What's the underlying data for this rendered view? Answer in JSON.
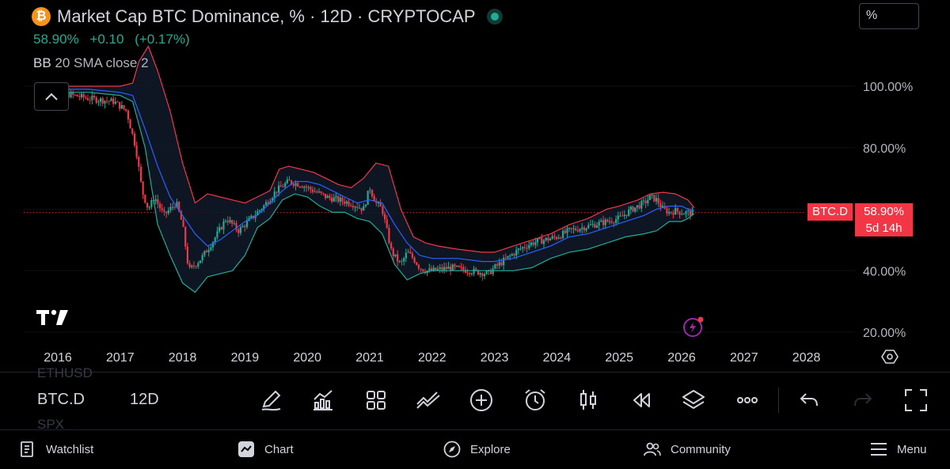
{
  "header": {
    "logo_glyph": "₿",
    "title": "Market Cap BTC Dominance, % · 12D · CRYPTOCAP",
    "price": "58.90%",
    "change": "+0.10",
    "change_pct": "(+0.17%)",
    "indicator_name": "BB",
    "indicator_params": "20 SMA close 2",
    "unit_mode": "%"
  },
  "colors": {
    "up": "#22ab94",
    "down": "#f23645",
    "upper_band": "#f23645",
    "lower_band": "#22ab94",
    "basis": "#2962ff",
    "badge": "#f23645",
    "background": "#000000"
  },
  "chart_data": {
    "type": "candlestick",
    "title": "Market Cap BTC Dominance, % · 12D · CRYPTOCAP",
    "y_axis": {
      "unit": "%",
      "ticks": [
        "100.00%",
        "80.00%",
        "40.00%",
        "20.00%"
      ],
      "tick_values": [
        100,
        80,
        40,
        20
      ],
      "range": [
        15,
        120
      ]
    },
    "x_axis": {
      "ticks": [
        "2016",
        "2017",
        "2018",
        "2019",
        "2020",
        "2021",
        "2022",
        "2023",
        "2024",
        "2025",
        "2026",
        "2027",
        "2028"
      ],
      "range": [
        2015.6,
        2028.8
      ]
    },
    "series": [
      {
        "name": "BTC.D",
        "kind": "close",
        "x": [
          2015.7,
          2016.0,
          2016.5,
          2016.9,
          2017.1,
          2017.25,
          2017.35,
          2017.45,
          2017.55,
          2017.7,
          2017.9,
          2018.0,
          2018.1,
          2018.3,
          2018.5,
          2018.7,
          2018.9,
          2019.1,
          2019.3,
          2019.5,
          2019.7,
          2019.9,
          2020.1,
          2020.3,
          2020.5,
          2020.7,
          2020.9,
          2021.0,
          2021.1,
          2021.2,
          2021.35,
          2021.5,
          2021.6,
          2021.7,
          2021.8,
          2021.9,
          2022.0,
          2022.3,
          2022.6,
          2022.9,
          2023.0,
          2023.2,
          2023.4,
          2023.6,
          2023.8,
          2024.0,
          2024.2,
          2024.4,
          2024.6,
          2024.8,
          2025.0,
          2025.2,
          2025.4,
          2025.5,
          2025.6,
          2025.7,
          2025.8,
          2025.9,
          2026.0,
          2026.1,
          2026.2
        ],
        "y": [
          99,
          98,
          96,
          95,
          92,
          80,
          66,
          60,
          64,
          58,
          62,
          55,
          40,
          44,
          50,
          57,
          53,
          57,
          61,
          66,
          69,
          68,
          66,
          64,
          63,
          62,
          60,
          67,
          62,
          60,
          46,
          42,
          46,
          44,
          41,
          40,
          40,
          41,
          40,
          39,
          41,
          44,
          47,
          49,
          50,
          51,
          53,
          54,
          55,
          56,
          57,
          60,
          62,
          64,
          63,
          60,
          59,
          59.5,
          59,
          58.8,
          58.9
        ]
      },
      {
        "name": "Upper band",
        "kind": "bb_upper",
        "x": [
          2015.7,
          2016.5,
          2017.0,
          2017.2,
          2017.3,
          2017.45,
          2017.6,
          2017.8,
          2018.0,
          2018.2,
          2018.4,
          2018.6,
          2018.8,
          2019.0,
          2019.2,
          2019.4,
          2019.55,
          2019.7,
          2019.9,
          2020.1,
          2020.3,
          2020.5,
          2020.7,
          2020.9,
          2021.1,
          2021.3,
          2021.5,
          2021.7,
          2021.9,
          2022.1,
          2022.4,
          2022.8,
          2023.0,
          2023.3,
          2023.6,
          2023.9,
          2024.2,
          2024.5,
          2024.8,
          2025.0,
          2025.3,
          2025.5,
          2025.7,
          2025.9,
          2026.1,
          2026.2
        ],
        "y": [
          100,
          100,
          100,
          101,
          108,
          113,
          105,
          92,
          75,
          62,
          65,
          64,
          63,
          62,
          64,
          66,
          73,
          74,
          73,
          72,
          70,
          68,
          67,
          70,
          75,
          74,
          60,
          51,
          49,
          48,
          47,
          46,
          46,
          48,
          50,
          52,
          55,
          57,
          60,
          61,
          63,
          65,
          65.5,
          65,
          63,
          60.5
        ]
      },
      {
        "name": "Lower band",
        "kind": "bb_lower",
        "x": [
          2015.7,
          2016.5,
          2017.0,
          2017.2,
          2017.4,
          2017.6,
          2017.8,
          2018.0,
          2018.2,
          2018.4,
          2018.6,
          2018.8,
          2019.0,
          2019.2,
          2019.4,
          2019.6,
          2019.8,
          2020.0,
          2020.2,
          2020.4,
          2020.6,
          2020.8,
          2021.0,
          2021.2,
          2021.4,
          2021.6,
          2021.8,
          2022.0,
          2022.4,
          2022.8,
          2023.0,
          2023.3,
          2023.6,
          2023.9,
          2024.2,
          2024.5,
          2024.8,
          2025.1,
          2025.4,
          2025.6,
          2025.8,
          2026.0,
          2026.1,
          2026.2
        ],
        "y": [
          98,
          98,
          97,
          95,
          80,
          55,
          45,
          36,
          33,
          38,
          39,
          40,
          45,
          54,
          57,
          63,
          65,
          64,
          61,
          59,
          59,
          57,
          56,
          52,
          42,
          37,
          39,
          40,
          40,
          40,
          40,
          40,
          41,
          44,
          46,
          47,
          49,
          51,
          52,
          53,
          56,
          56,
          57,
          58.5
        ]
      },
      {
        "name": "Basis",
        "kind": "bb_basis",
        "x": [
          2015.7,
          2016.5,
          2017.0,
          2017.2,
          2017.4,
          2017.6,
          2017.8,
          2018.0,
          2018.2,
          2018.4,
          2018.6,
          2018.8,
          2019.0,
          2019.2,
          2019.4,
          2019.6,
          2019.8,
          2020.0,
          2020.2,
          2020.4,
          2020.6,
          2020.8,
          2021.0,
          2021.2,
          2021.4,
          2021.6,
          2021.8,
          2022.0,
          2022.4,
          2022.8,
          2023.0,
          2023.3,
          2023.6,
          2023.9,
          2024.2,
          2024.5,
          2024.8,
          2025.1,
          2025.4,
          2025.6,
          2025.8,
          2026.0,
          2026.1,
          2026.2
        ],
        "y": [
          99,
          99,
          98,
          97,
          86,
          74,
          64,
          58,
          52,
          48,
          50,
          53,
          56,
          58,
          62,
          66,
          69,
          69,
          68,
          66,
          64,
          62,
          63,
          62,
          55,
          49,
          45,
          44,
          44,
          43,
          43,
          44,
          46,
          48,
          51,
          52,
          54,
          56,
          58,
          60,
          61,
          61,
          60,
          59.5
        ]
      }
    ],
    "last_price_line": 58.9,
    "grid": false,
    "legend": "top-left"
  },
  "badges": {
    "symbol": "BTC.D",
    "price": "58.90%",
    "countdown": "5d 14h"
  },
  "toolbar": {
    "ghost_above": "ETHUSD",
    "symbol": "BTC.D",
    "interval": "12D",
    "ghost_below": "SPX",
    "icons": [
      "draw-pen-icon",
      "indicators-icon",
      "layouts-grid-icon",
      "compare-icon",
      "add-circle-icon",
      "alert-clock-icon",
      "candles-icon",
      "replay-icon",
      "layers-icon",
      "more-dots-icon",
      "undo-icon",
      "redo-icon",
      "fullscreen-icon"
    ]
  },
  "nav": {
    "watchlist": "Watchlist",
    "chart": "Chart",
    "explore": "Explore",
    "community": "Community",
    "menu": "Menu"
  }
}
